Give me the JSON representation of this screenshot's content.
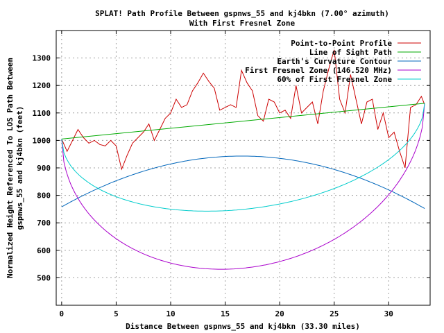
{
  "chart_data": {
    "type": "line",
    "title_lines": [
      "SPLAT! Path Profile Between gspnws_55 and kj4bkn (7.00° azimuth)",
      "With First Fresnel Zone"
    ],
    "xlabel": "Distance Between gspnws_55 and kj4bkn (33.30 miles)",
    "ylabel_lines": [
      "Normalized Height Referenced To LOS Path Between",
      "gspnws_55 and kj4bkn (feet)"
    ],
    "xlim": [
      -0.5,
      33.8
    ],
    "ylim": [
      400,
      1400
    ],
    "xticks": [
      0,
      5,
      10,
      15,
      20,
      25,
      30
    ],
    "yticks": [
      500,
      600,
      700,
      800,
      900,
      1000,
      1100,
      1200,
      1300
    ],
    "grid": true,
    "legend_position": "top-right",
    "path_length": 33.3,
    "series": [
      {
        "name": "Point-to-Point Profile",
        "color": "#cc0000",
        "kind": "profile",
        "x": [
          0,
          0.5,
          1,
          1.5,
          2,
          2.5,
          3,
          3.5,
          4,
          4.5,
          5,
          5.5,
          6,
          6.5,
          7,
          7.5,
          8,
          8.5,
          9,
          9.5,
          10,
          10.5,
          11,
          11.5,
          12,
          12.5,
          13,
          13.5,
          14,
          14.5,
          15,
          15.5,
          16,
          16.5,
          17,
          17.5,
          18,
          18.5,
          19,
          19.5,
          20,
          20.5,
          21,
          21.5,
          22,
          22.5,
          23,
          23.5,
          24,
          24.5,
          25,
          25.5,
          26,
          26.5,
          27,
          27.5,
          28,
          28.5,
          29,
          29.5,
          30,
          30.5,
          31,
          31.5,
          32,
          32.5,
          33,
          33.3
        ],
        "values": [
          1005,
          960,
          1000,
          1040,
          1010,
          990,
          1000,
          985,
          980,
          1000,
          980,
          895,
          945,
          990,
          1010,
          1030,
          1060,
          1000,
          1040,
          1080,
          1100,
          1150,
          1120,
          1130,
          1180,
          1210,
          1245,
          1215,
          1190,
          1110,
          1120,
          1130,
          1120,
          1255,
          1210,
          1180,
          1090,
          1070,
          1150,
          1140,
          1100,
          1110,
          1080,
          1200,
          1100,
          1120,
          1140,
          1060,
          1180,
          1260,
          1330,
          1150,
          1100,
          1240,
          1150,
          1060,
          1140,
          1150,
          1040,
          1100,
          1010,
          1030,
          960,
          900,
          1120,
          1130,
          1160,
          1130
        ]
      },
      {
        "name": "Line of Sight Path",
        "color": "#00aa00",
        "kind": "line",
        "start": 1005,
        "end": 1135
      },
      {
        "name": "Earth's Curvature Contour",
        "color": "#0066bb",
        "kind": "curvature",
        "ends": [
          758,
          752
        ],
        "peak": 943
      },
      {
        "name": "First Fresnel Zone (146.520 MHz)",
        "color": "#aa00cc",
        "kind": "fresnel",
        "radius_ft": 535
      },
      {
        "name": "60% of First Fresnel Zone",
        "color": "#00cccc",
        "kind": "fresnel",
        "radius_ft": 321
      }
    ]
  }
}
